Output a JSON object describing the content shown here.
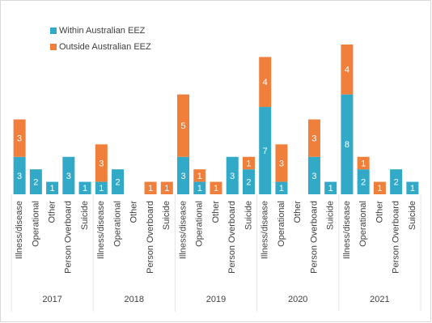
{
  "chart_data": {
    "type": "bar",
    "stacked": true,
    "groups": [
      "2017",
      "2018",
      "2019",
      "2020",
      "2021"
    ],
    "categories": [
      "Illness/disease",
      "Operational",
      "Other",
      "Person Overboard",
      "Suicide",
      "Illness/disease",
      "Operational",
      "Other",
      "Person Overboard",
      "Suicide",
      "Illness/disease",
      "Operational",
      "Other",
      "Person Overboard",
      "Suicide",
      "Illness/disease",
      "Operational",
      "Other",
      "Person Overboard",
      "Suicide",
      "Illness/disease",
      "Operational",
      "Other",
      "Person Overboard",
      "Suicide"
    ],
    "series": [
      {
        "name": "Within Australian EEZ",
        "color": "#31a9c7",
        "values": [
          3,
          2,
          1,
          3,
          1,
          1,
          2,
          null,
          null,
          null,
          3,
          1,
          null,
          3,
          2,
          7,
          1,
          null,
          3,
          1,
          8,
          2,
          null,
          2,
          1
        ]
      },
      {
        "name": "Outside Australian EEZ",
        "color": "#f07f3c",
        "values": [
          3,
          null,
          null,
          null,
          null,
          3,
          null,
          null,
          1,
          1,
          5,
          1,
          1,
          null,
          1,
          4,
          3,
          null,
          3,
          null,
          4,
          1,
          1,
          null,
          null
        ]
      }
    ],
    "legend": "top-left"
  }
}
